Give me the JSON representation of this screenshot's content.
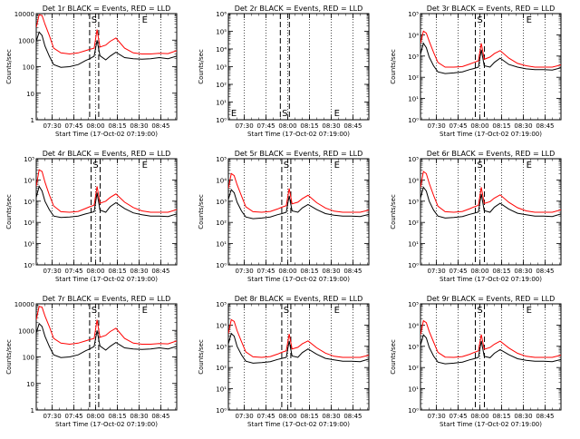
{
  "x_tick_labels": [
    "07:30",
    "07:45",
    "08:00",
    "08:15",
    "08:30",
    "08:45"
  ],
  "x_label": "Start Time (17-Oct-02 07:19:00)",
  "y_label": "Counts/sec",
  "colors": {
    "events": "#000000",
    "lld": "#ff0000",
    "axes": "#000000"
  },
  "chart_data": [
    {
      "type": "line",
      "title": "Det 1r BLACK = Events, RED = LLD",
      "xlabel": "Start Time (17-Oct-02 07:19:00)",
      "ylabel": "Counts/sec",
      "y_log": true,
      "ylim": [
        1,
        10000
      ],
      "xlim": [
        "07:19",
        "08:56"
      ],
      "y_tick_labels": [
        "1",
        "10",
        "100",
        "1000",
        "10000"
      ],
      "markers": {
        "S": "07:59",
        "E": "08:34"
      },
      "x": [
        "07:19",
        "07:21",
        "07:23",
        "07:25",
        "07:28",
        "07:31",
        "07:36",
        "07:42",
        "07:48",
        "07:53",
        "07:56",
        "07:59",
        "08:01",
        "08:03",
        "08:07",
        "08:10",
        "08:14",
        "08:20",
        "08:26",
        "08:32",
        "08:38",
        "08:44",
        "08:50",
        "08:56"
      ],
      "series": [
        {
          "name": "Events",
          "values": [
            900,
            2000,
            1500,
            600,
            250,
            120,
            95,
            100,
            120,
            170,
            200,
            250,
            1000,
            260,
            180,
            250,
            350,
            220,
            200,
            190,
            200,
            220,
            200,
            250
          ]
        },
        {
          "name": "LLD",
          "values": [
            3000,
            9000,
            8500,
            4000,
            1500,
            500,
            330,
            300,
            330,
            400,
            450,
            500,
            2500,
            550,
            650,
            900,
            1200,
            500,
            330,
            300,
            300,
            320,
            310,
            400
          ]
        }
      ]
    },
    {
      "type": "line",
      "title": "Det 2r BLACK = Events, RED = LLD",
      "xlabel": "Start Time (17-Oct-02 07:19:00)",
      "ylabel": "Counts/sec",
      "y_log": true,
      "ylim": [
        1,
        1000000
      ],
      "xlim": [
        "07:19",
        "08:56"
      ],
      "y_tick_labels": [
        "10⁰",
        "10¹",
        "10²",
        "10³",
        "10⁴",
        "10⁵",
        "10⁶"
      ],
      "markers": {
        "S": "07:58",
        "E": "08:34"
      },
      "x": [],
      "series": []
    },
    {
      "type": "line",
      "title": "Det 3r BLACK = Events, RED = LLD",
      "xlabel": "Start Time (17-Oct-02 07:19:00)",
      "ylabel": "Counts/sec",
      "y_log": true,
      "ylim": [
        1,
        100000
      ],
      "xlim": [
        "07:19",
        "08:56"
      ],
      "y_tick_labels": [
        "10⁰",
        "10¹",
        "10²",
        "10³",
        "10⁴",
        "10⁵"
      ],
      "markers": {
        "S": "08:00",
        "E": "08:34"
      },
      "x": [
        "07:19",
        "07:21",
        "07:23",
        "07:25",
        "07:28",
        "07:31",
        "07:36",
        "07:42",
        "07:48",
        "07:53",
        "07:56",
        "07:59",
        "08:01",
        "08:03",
        "08:07",
        "08:10",
        "08:14",
        "08:20",
        "08:26",
        "08:32",
        "08:38",
        "08:44",
        "08:50",
        "08:56"
      ],
      "series": [
        {
          "name": "Events",
          "values": [
            1200,
            4000,
            2500,
            900,
            350,
            180,
            150,
            160,
            180,
            230,
            260,
            300,
            2000,
            350,
            300,
            500,
            800,
            400,
            300,
            250,
            230,
            230,
            220,
            280
          ]
        },
        {
          "name": "LLD",
          "values": [
            4000,
            15000,
            12000,
            5000,
            1500,
            500,
            300,
            300,
            320,
            420,
            500,
            600,
            4000,
            700,
            900,
            1300,
            1800,
            800,
            450,
            350,
            300,
            300,
            300,
            380
          ]
        }
      ]
    },
    {
      "type": "line",
      "title": "Det 4r BLACK = Events, RED = LLD",
      "xlabel": "Start Time (17-Oct-02 07:19:00)",
      "ylabel": "Counts/sec",
      "y_log": true,
      "ylim": [
        1,
        100000
      ],
      "xlim": [
        "07:19",
        "08:56"
      ],
      "y_tick_labels": [
        "10⁰",
        "10¹",
        "10²",
        "10³",
        "10⁴",
        "10⁵"
      ],
      "markers": {
        "S": "08:00",
        "E": "08:34"
      },
      "x": [
        "07:19",
        "07:21",
        "07:23",
        "07:25",
        "07:28",
        "07:31",
        "07:36",
        "07:42",
        "07:48",
        "07:53",
        "07:56",
        "07:59",
        "08:01",
        "08:03",
        "08:07",
        "08:10",
        "08:14",
        "08:20",
        "08:26",
        "08:32",
        "08:38",
        "08:44",
        "08:50",
        "08:56"
      ],
      "series": [
        {
          "name": "Events",
          "values": [
            1500,
            5000,
            3000,
            1000,
            400,
            200,
            170,
            180,
            200,
            250,
            280,
            320,
            2500,
            380,
            300,
            550,
            850,
            450,
            280,
            230,
            200,
            200,
            190,
            250
          ]
        },
        {
          "name": "LLD",
          "values": [
            5000,
            30000,
            25000,
            8000,
            2000,
            600,
            320,
            300,
            330,
            450,
            550,
            650,
            5000,
            800,
            1000,
            1500,
            2200,
            900,
            500,
            350,
            300,
            300,
            300,
            400
          ]
        }
      ]
    },
    {
      "type": "line",
      "title": "Det 5r BLACK = Events, RED = LLD",
      "xlabel": "Start Time (17-Oct-02 07:19:00)",
      "ylabel": "Counts/sec",
      "y_log": true,
      "ylim": [
        1,
        100000
      ],
      "xlim": [
        "07:19",
        "08:56"
      ],
      "y_tick_labels": [
        "10⁰",
        "10¹",
        "10²",
        "10³",
        "10⁴",
        "10⁵"
      ],
      "markers": {
        "S": "07:59",
        "E": "08:34"
      },
      "x": [
        "07:19",
        "07:21",
        "07:23",
        "07:25",
        "07:28",
        "07:31",
        "07:36",
        "07:42",
        "07:48",
        "07:53",
        "07:56",
        "07:59",
        "08:01",
        "08:03",
        "08:07",
        "08:10",
        "08:14",
        "08:20",
        "08:26",
        "08:32",
        "08:38",
        "08:44",
        "08:50",
        "08:56"
      ],
      "series": [
        {
          "name": "Events",
          "values": [
            1200,
            3500,
            2500,
            900,
            350,
            180,
            150,
            160,
            180,
            230,
            260,
            300,
            1800,
            350,
            300,
            480,
            700,
            400,
            260,
            220,
            200,
            200,
            190,
            240
          ]
        },
        {
          "name": "LLD",
          "values": [
            4000,
            20000,
            16000,
            6000,
            1800,
            550,
            320,
            300,
            330,
            430,
            520,
            620,
            4000,
            750,
            900,
            1300,
            1900,
            850,
            480,
            340,
            300,
            300,
            300,
            380
          ]
        }
      ]
    },
    {
      "type": "line",
      "title": "Det 6r BLACK = Events, RED = LLD",
      "xlabel": "Start Time (17-Oct-02 07:19:00)",
      "ylabel": "Counts/sec",
      "y_log": true,
      "ylim": [
        1,
        100000
      ],
      "xlim": [
        "07:19",
        "08:56"
      ],
      "y_tick_labels": [
        "10⁰",
        "10¹",
        "10²",
        "10³",
        "10⁴",
        "10⁵"
      ],
      "markers": {
        "S": "08:00",
        "E": "08:34"
      },
      "x": [
        "07:19",
        "07:21",
        "07:23",
        "07:25",
        "07:28",
        "07:31",
        "07:36",
        "07:42",
        "07:48",
        "07:53",
        "07:56",
        "07:59",
        "08:01",
        "08:03",
        "08:07",
        "08:10",
        "08:14",
        "08:20",
        "08:26",
        "08:32",
        "08:38",
        "08:44",
        "08:50",
        "08:56"
      ],
      "series": [
        {
          "name": "Events",
          "values": [
            1400,
            4500,
            3000,
            1000,
            380,
            200,
            160,
            170,
            190,
            240,
            270,
            310,
            2200,
            360,
            300,
            520,
            800,
            420,
            270,
            230,
            200,
            200,
            190,
            250
          ]
        },
        {
          "name": "LLD",
          "values": [
            4500,
            25000,
            20000,
            7000,
            1900,
            580,
            320,
            300,
            330,
            440,
            540,
            640,
            4500,
            780,
            950,
            1400,
            2000,
            880,
            490,
            350,
            300,
            300,
            300,
            390
          ]
        }
      ]
    },
    {
      "type": "line",
      "title": "Det 7r BLACK = Events, RED = LLD",
      "xlabel": "Start Time (17-Oct-02 07:19:00)",
      "ylabel": "Counts/sec",
      "y_log": true,
      "ylim": [
        1,
        10000
      ],
      "xlim": [
        "07:19",
        "08:56"
      ],
      "y_tick_labels": [
        "1",
        "10",
        "100",
        "1000",
        "10000"
      ],
      "markers": {
        "S": "07:59",
        "E": "08:34"
      },
      "x": [
        "07:19",
        "07:21",
        "07:23",
        "07:25",
        "07:28",
        "07:31",
        "07:36",
        "07:42",
        "07:48",
        "07:53",
        "07:56",
        "07:59",
        "08:01",
        "08:03",
        "08:07",
        "08:10",
        "08:14",
        "08:20",
        "08:26",
        "08:32",
        "08:38",
        "08:44",
        "08:50",
        "08:56"
      ],
      "series": [
        {
          "name": "Events",
          "values": [
            800,
            1800,
            1400,
            600,
            250,
            120,
            95,
            100,
            120,
            170,
            200,
            250,
            1000,
            260,
            180,
            250,
            350,
            220,
            200,
            190,
            200,
            220,
            200,
            250
          ]
        },
        {
          "name": "LLD",
          "values": [
            2500,
            8000,
            7500,
            3500,
            1400,
            500,
            330,
            300,
            330,
            400,
            450,
            500,
            2500,
            550,
            650,
            900,
            1200,
            500,
            330,
            300,
            300,
            320,
            310,
            400
          ]
        }
      ]
    },
    {
      "type": "line",
      "title": "Det 8r BLACK = Events, RED = LLD",
      "xlabel": "Start Time (17-Oct-02 07:19:00)",
      "ylabel": "Counts/sec",
      "y_log": true,
      "ylim": [
        1,
        100000
      ],
      "xlim": [
        "07:19",
        "08:56"
      ],
      "y_tick_labels": [
        "10⁰",
        "10¹",
        "10²",
        "10³",
        "10⁴",
        "10⁵"
      ],
      "markers": {
        "S": "07:59",
        "E": "08:34"
      },
      "x": [
        "07:19",
        "07:21",
        "07:23",
        "07:25",
        "07:28",
        "07:31",
        "07:36",
        "07:42",
        "07:48",
        "07:53",
        "07:56",
        "07:59",
        "08:01",
        "08:03",
        "08:07",
        "08:10",
        "08:14",
        "08:20",
        "08:26",
        "08:32",
        "08:38",
        "08:44",
        "08:50",
        "08:56"
      ],
      "series": [
        {
          "name": "Events",
          "values": [
            1300,
            4000,
            3000,
            1000,
            400,
            200,
            160,
            170,
            190,
            240,
            270,
            300,
            1800,
            350,
            300,
            500,
            750,
            420,
            270,
            230,
            200,
            200,
            190,
            250
          ]
        },
        {
          "name": "LLD",
          "values": [
            4000,
            18000,
            15000,
            5500,
            1700,
            550,
            320,
            300,
            330,
            430,
            520,
            620,
            3800,
            750,
            900,
            1300,
            1800,
            850,
            480,
            340,
            300,
            300,
            300,
            380
          ]
        }
      ]
    },
    {
      "type": "line",
      "title": "Det 9r BLACK = Events, RED = LLD",
      "xlabel": "Start Time (17-Oct-02 07:19:00)",
      "ylabel": "Counts/sec",
      "y_log": true,
      "ylim": [
        1,
        100000
      ],
      "xlim": [
        "07:19",
        "08:56"
      ],
      "y_tick_labels": [
        "10⁰",
        "10¹",
        "10²",
        "10³",
        "10⁴",
        "10⁵"
      ],
      "markers": {
        "S": "08:00",
        "E": "08:34"
      },
      "x": [
        "07:19",
        "07:21",
        "07:23",
        "07:25",
        "07:28",
        "07:31",
        "07:36",
        "07:42",
        "07:48",
        "07:53",
        "07:56",
        "07:59",
        "08:01",
        "08:03",
        "08:07",
        "08:10",
        "08:14",
        "08:20",
        "08:26",
        "08:32",
        "08:38",
        "08:44",
        "08:50",
        "08:56"
      ],
      "series": [
        {
          "name": "Events",
          "values": [
            1100,
            3500,
            2500,
            900,
            350,
            180,
            150,
            160,
            180,
            230,
            260,
            300,
            1800,
            340,
            290,
            470,
            700,
            400,
            260,
            220,
            200,
            200,
            190,
            240
          ]
        },
        {
          "name": "LLD",
          "values": [
            3500,
            16000,
            13000,
            5000,
            1600,
            520,
            310,
            300,
            330,
            420,
            510,
            610,
            3600,
            720,
            880,
            1250,
            1750,
            830,
            470,
            340,
            300,
            300,
            300,
            380
          ]
        }
      ]
    }
  ]
}
